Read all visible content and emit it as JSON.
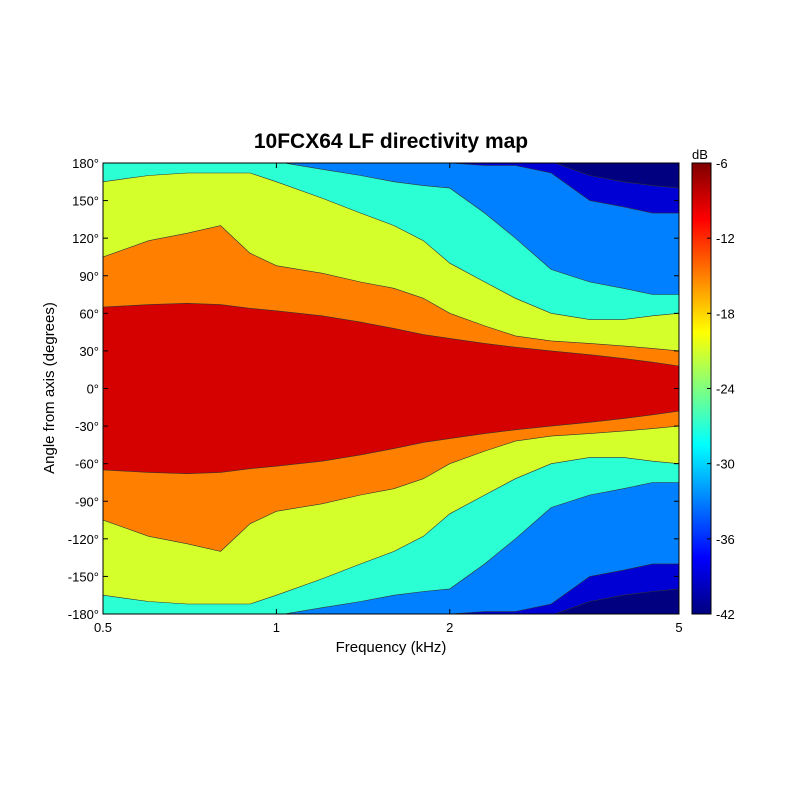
{
  "chart_data": {
    "type": "heatmap",
    "title": "10FCX64 LF directivity map",
    "xlabel": "Frequency (kHz)",
    "ylabel": "Angle from axis (degrees)",
    "x_scale": "log",
    "xlim": [
      0.5,
      5
    ],
    "ylim": [
      -180,
      180
    ],
    "x_ticks": [
      {
        "value": 0.5,
        "label": "0.5"
      },
      {
        "value": 1,
        "label": "1"
      },
      {
        "value": 2,
        "label": "2"
      },
      {
        "value": 5,
        "label": "5"
      }
    ],
    "y_ticks": [
      {
        "value": 180,
        "label": "180°"
      },
      {
        "value": 150,
        "label": "150°"
      },
      {
        "value": 120,
        "label": "120°"
      },
      {
        "value": 90,
        "label": "90°"
      },
      {
        "value": 60,
        "label": "60°"
      },
      {
        "value": 30,
        "label": "30°"
      },
      {
        "value": 0,
        "label": "0°"
      },
      {
        "value": -30,
        "label": "-30°"
      },
      {
        "value": -60,
        "label": "-60°"
      },
      {
        "value": -90,
        "label": "-90°"
      },
      {
        "value": -120,
        "label": "-120°"
      },
      {
        "value": -150,
        "label": "-150°"
      },
      {
        "value": -180,
        "label": "-180°"
      }
    ],
    "colorbar": {
      "unit": "dB",
      "range": [
        -42,
        -6
      ],
      "ticks": [
        {
          "value": -6,
          "label": "-6"
        },
        {
          "value": -12,
          "label": "-12"
        },
        {
          "value": -18,
          "label": "-18"
        },
        {
          "value": -24,
          "label": "-24"
        },
        {
          "value": -30,
          "label": "-30"
        },
        {
          "value": -36,
          "label": "-36"
        },
        {
          "value": -42,
          "label": "-42"
        }
      ],
      "colormap": "jet"
    },
    "frequencies_khz": [
      0.5,
      0.6,
      0.7,
      0.8,
      0.9,
      1.0,
      1.2,
      1.4,
      1.6,
      1.8,
      2.0,
      2.3,
      2.6,
      3.0,
      3.5,
      4.0,
      4.5,
      5.0
    ],
    "contour_levels_db": [
      -9,
      -15,
      -21,
      -27,
      -33,
      -39
    ],
    "contour_angle_boundaries_deg": [
      [
        65,
        67,
        68,
        67,
        64,
        62,
        58,
        53,
        48,
        43,
        40,
        36,
        33,
        30,
        27,
        24,
        21,
        18
      ],
      [
        105,
        118,
        124,
        130,
        108,
        98,
        92,
        85,
        80,
        72,
        60,
        50,
        42,
        38,
        36,
        34,
        32,
        30
      ],
      [
        165,
        170,
        172,
        172,
        172,
        165,
        152,
        140,
        130,
        118,
        100,
        85,
        72,
        60,
        55,
        55,
        58,
        60
      ],
      [
        181,
        181,
        181,
        181,
        181,
        181,
        175,
        170,
        165,
        162,
        160,
        140,
        120,
        95,
        85,
        80,
        75,
        75
      ],
      [
        181,
        181,
        181,
        181,
        181,
        181,
        181,
        181,
        181,
        181,
        180,
        178,
        178,
        172,
        150,
        145,
        140,
        140
      ],
      [
        181,
        181,
        181,
        181,
        181,
        181,
        181,
        181,
        181,
        181,
        181,
        181,
        181,
        181,
        170,
        165,
        162,
        160
      ]
    ]
  }
}
